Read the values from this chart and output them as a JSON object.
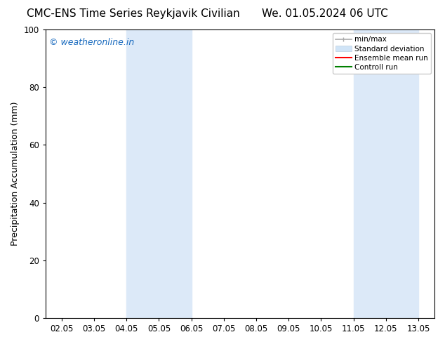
{
  "title_left": "CMC-ENS Time Series Reykjavik Civilian",
  "title_right": "We. 01.05.2024 06 UTC",
  "ylabel": "Precipitation Accumulation (mm)",
  "ylim": [
    0,
    100
  ],
  "yticks": [
    0,
    20,
    40,
    60,
    80,
    100
  ],
  "x_tick_labels": [
    "02.05",
    "03.05",
    "04.05",
    "05.05",
    "06.05",
    "07.05",
    "08.05",
    "09.05",
    "10.05",
    "11.05",
    "12.05",
    "13.05"
  ],
  "x_tick_positions": [
    0,
    1,
    2,
    3,
    4,
    5,
    6,
    7,
    8,
    9,
    10,
    11
  ],
  "xlim": [
    -0.5,
    11.5
  ],
  "shaded_regions": [
    {
      "x_start": 2.0,
      "x_end": 4.0,
      "color": "#dce9f8"
    },
    {
      "x_start": 9.0,
      "x_end": 11.0,
      "color": "#dce9f8"
    }
  ],
  "watermark_text": "© weatheronline.in",
  "watermark_color": "#1a6bbf",
  "background_color": "#ffffff",
  "legend_items": [
    {
      "label": "min/max",
      "color": "#aaaaaa",
      "lw": 1.2,
      "style": "line_with_caps"
    },
    {
      "label": "Standard deviation",
      "color": "#d0e4f7",
      "lw": 7,
      "style": "band"
    },
    {
      "label": "Ensemble mean run",
      "color": "#ff0000",
      "lw": 1.5,
      "style": "line"
    },
    {
      "label": "Controll run",
      "color": "#008000",
      "lw": 1.5,
      "style": "line"
    }
  ],
  "title_fontsize": 11,
  "axis_label_fontsize": 9,
  "tick_fontsize": 8.5,
  "watermark_fontsize": 9
}
